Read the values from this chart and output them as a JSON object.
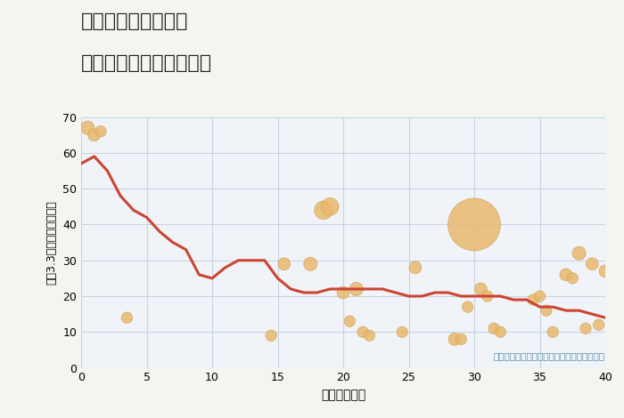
{
  "title_line1": "兵庫県豊岡市新堂の",
  "title_line2": "築年数別中古戸建て価格",
  "xlabel": "築年数（年）",
  "ylabel": "坪（3.3㎡）単価（万円）",
  "annotation": "円の大きさは、取引のあった物件面積を示す",
  "bg_color": "#f5f5f0",
  "plot_bg_color": "#f0f4f8",
  "grid_color": "#c8d4e0",
  "line_color": "#cc4433",
  "scatter_color": "#e8b86d",
  "scatter_edge_color": "#d4a055",
  "xlim": [
    0,
    40
  ],
  "ylim": [
    0,
    70
  ],
  "xticks": [
    0,
    5,
    10,
    15,
    20,
    25,
    30,
    35,
    40
  ],
  "yticks": [
    0,
    10,
    20,
    30,
    40,
    50,
    60,
    70
  ],
  "line_x": [
    0,
    1,
    2,
    3,
    4,
    5,
    6,
    7,
    8,
    9,
    10,
    11,
    12,
    13,
    14,
    15,
    16,
    17,
    18,
    19,
    20,
    21,
    22,
    23,
    24,
    25,
    26,
    27,
    28,
    29,
    30,
    31,
    32,
    33,
    34,
    35,
    36,
    37,
    38,
    39,
    40
  ],
  "line_y": [
    57,
    59,
    55,
    48,
    44,
    42,
    38,
    35,
    33,
    26,
    25,
    28,
    30,
    30,
    30,
    25,
    22,
    21,
    21,
    22,
    22,
    22,
    22,
    22,
    21,
    20,
    20,
    21,
    21,
    20,
    20,
    20,
    20,
    19,
    19,
    17,
    17,
    16,
    16,
    15,
    14
  ],
  "scatter_x": [
    0.5,
    1.0,
    1.5,
    3.5,
    14.5,
    15.5,
    17.5,
    18.5,
    19.0,
    20.0,
    20.5,
    21.0,
    21.5,
    22.0,
    24.5,
    25.5,
    28.5,
    29.0,
    29.5,
    30.0,
    30.5,
    31.0,
    31.5,
    32.0,
    34.5,
    35.0,
    35.5,
    36.0,
    37.0,
    37.5,
    38.0,
    38.5,
    39.0,
    39.5,
    40.0
  ],
  "scatter_y": [
    67,
    65,
    66,
    14,
    9,
    29,
    29,
    44,
    45,
    21,
    13,
    22,
    10,
    9,
    10,
    28,
    8,
    8,
    17,
    40,
    22,
    20,
    11,
    10,
    19,
    20,
    16,
    10,
    26,
    25,
    32,
    11,
    29,
    12,
    27
  ],
  "scatter_size": [
    120,
    100,
    80,
    80,
    80,
    100,
    120,
    220,
    200,
    100,
    80,
    120,
    80,
    80,
    80,
    100,
    100,
    80,
    80,
    1800,
    100,
    80,
    80,
    80,
    80,
    80,
    80,
    80,
    100,
    80,
    120,
    80,
    100,
    80,
    100
  ]
}
